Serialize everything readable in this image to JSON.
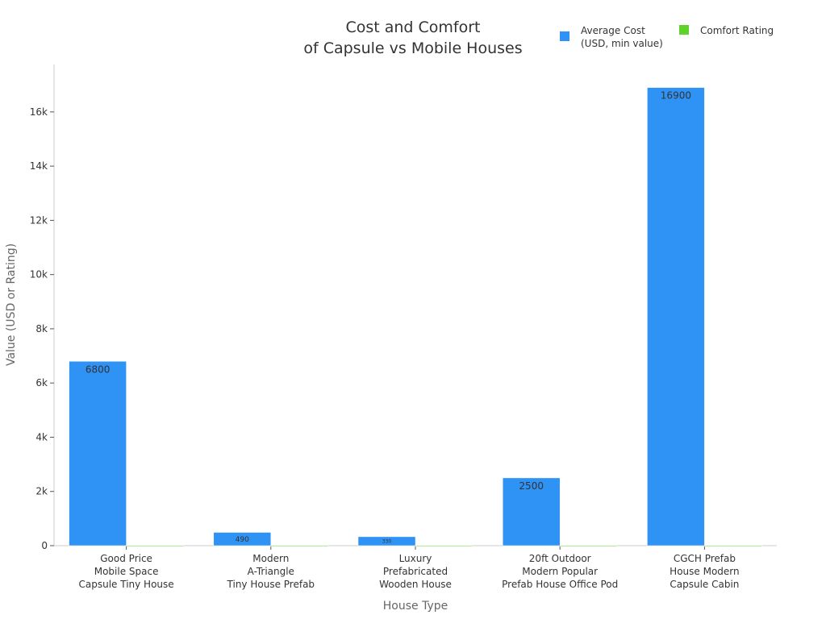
{
  "chart_data": {
    "type": "bar",
    "title": "Cost and Comfort\nof Capsule vs Mobile Houses",
    "x_label": "House Type",
    "y_label": "Value (USD or Rating)",
    "categories": [
      "Good Price\nMobile Space\nCapsule Tiny House",
      "Modern\nA-Triangle\nTiny House Prefab",
      "Luxury\nPrefabricated\nWooden House",
      "20ft Outdoor\nModern Popular\nPrefab House Office Pod",
      "CGCH Prefab\nHouse Modern\nCapsule Cabin"
    ],
    "series": [
      {
        "name": "Average Cost\n(USD, min value)",
        "color": "#2f92f5",
        "values": [
          6800,
          490,
          330,
          2500,
          16900
        ]
      },
      {
        "name": "Comfort Rating",
        "color": "#5fd32a",
        "values": [
          4.5,
          4.2,
          4.6,
          4.3,
          4.7
        ]
      }
    ],
    "ylim": [
      0,
      17750
    ],
    "yticks": [
      0,
      {
        "value": 2000,
        "label": "2k"
      },
      {
        "value": 4000,
        "label": "4k"
      },
      {
        "value": 6000,
        "label": "6k"
      },
      {
        "value": 8000,
        "label": "8k"
      },
      {
        "value": 10000,
        "label": "10k"
      },
      {
        "value": 12000,
        "label": "12k"
      },
      {
        "value": 14000,
        "label": "14k"
      },
      {
        "value": 16000,
        "label": "16k"
      }
    ],
    "legend": "top-right"
  }
}
